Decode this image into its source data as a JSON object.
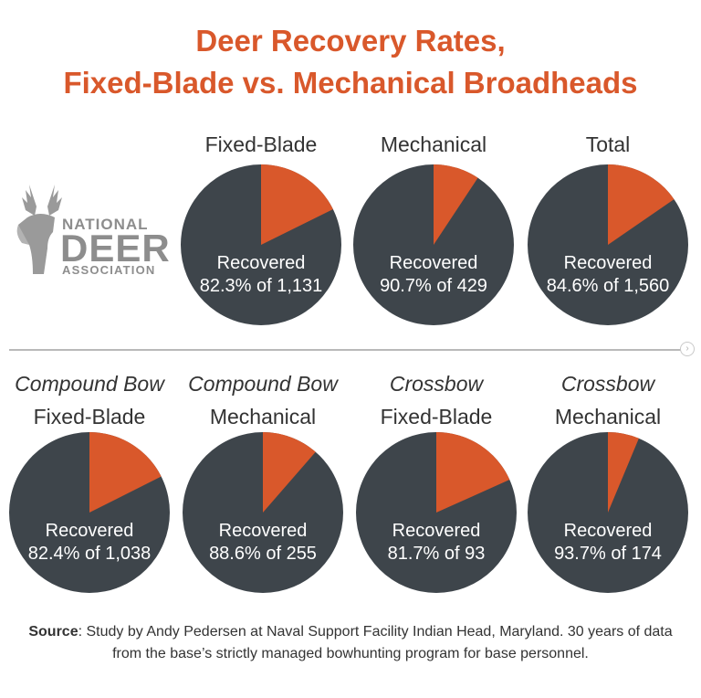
{
  "title": {
    "line1": "Deer Recovery Rates,",
    "line2": "Fixed-Blade vs. Mechanical Broadheads"
  },
  "logo": {
    "line1": "NATIONAL",
    "line2": "DEER",
    "line3": "ASSOCIATION"
  },
  "colors": {
    "recovered": "#3e454b",
    "not_recovered": "#d9582b",
    "title": "#d9582b"
  },
  "chart_data": [
    {
      "type": "pie",
      "title_lines": [
        "Fixed-Blade"
      ],
      "italic_first": false,
      "label": "Recovered",
      "detail": "82.3% of 1,131",
      "recovered_pct": 82.3
    },
    {
      "type": "pie",
      "title_lines": [
        "Mechanical"
      ],
      "italic_first": false,
      "label": "Recovered",
      "detail": "90.7% of 429",
      "recovered_pct": 90.7
    },
    {
      "type": "pie",
      "title_lines": [
        "Total"
      ],
      "italic_first": false,
      "label": "Recovered",
      "detail": "84.6% of 1,560",
      "recovered_pct": 84.6
    },
    {
      "type": "pie",
      "title_lines": [
        "Compound Bow",
        "Fixed-Blade"
      ],
      "italic_first": true,
      "label": "Recovered",
      "detail": "82.4% of 1,038",
      "recovered_pct": 82.4
    },
    {
      "type": "pie",
      "title_lines": [
        "Compound Bow",
        "Mechanical"
      ],
      "italic_first": true,
      "label": "Recovered",
      "detail": "88.6% of 255",
      "recovered_pct": 88.6
    },
    {
      "type": "pie",
      "title_lines": [
        "Crossbow",
        "Fixed-Blade"
      ],
      "italic_first": true,
      "label": "Recovered",
      "detail": "81.7% of 93",
      "recovered_pct": 81.7
    },
    {
      "type": "pie",
      "title_lines": [
        "Crossbow",
        "Mechanical"
      ],
      "italic_first": true,
      "label": "Recovered",
      "detail": "93.7% of 174",
      "recovered_pct": 93.7
    }
  ],
  "source": {
    "prefix": "Source",
    "text": ": Study by Andy Pedersen at Naval Support Facility Indian Head, Maryland. 30 years of data from the base’s strictly managed bowhunting program for base personnel."
  }
}
